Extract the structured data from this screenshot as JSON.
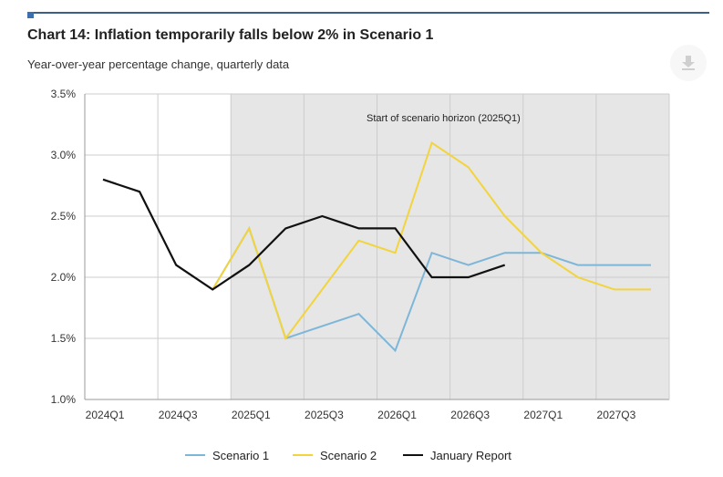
{
  "header": {
    "title": "Chart 14: Inflation temporarily falls below 2% in Scenario 1",
    "subtitle": "Year-over-year percentage change, quarterly data"
  },
  "toolbar": {
    "download_icon": "download-icon"
  },
  "chart_data": {
    "type": "line",
    "title": "Chart 14: Inflation temporarily falls below 2% in Scenario 1",
    "subtitle": "Year-over-year percentage change, quarterly data",
    "xlabel": "",
    "ylabel": "",
    "ylim": [
      1.0,
      3.5
    ],
    "y_ticks": [
      "1.0%",
      "1.5%",
      "2.0%",
      "2.5%",
      "3.0%",
      "3.5%"
    ],
    "y_tick_values": [
      1.0,
      1.5,
      2.0,
      2.5,
      3.0,
      3.5
    ],
    "x": [
      "2024Q1",
      "2024Q2",
      "2024Q3",
      "2024Q4",
      "2025Q1",
      "2025Q2",
      "2025Q3",
      "2025Q4",
      "2026Q1",
      "2026Q2",
      "2026Q3",
      "2026Q4",
      "2027Q1",
      "2027Q2",
      "2027Q3",
      "2027Q4"
    ],
    "x_tick_labels": [
      "2024Q1",
      "2024Q3",
      "2025Q1",
      "2025Q3",
      "2026Q1",
      "2026Q3",
      "2027Q1",
      "2027Q3"
    ],
    "grid": true,
    "shaded_region": {
      "from": "2025Q1",
      "to": "2027Q4",
      "color": "#e6e6e6",
      "label": "Start of scenario horizon (2025Q1)"
    },
    "legend_position": "bottom",
    "series": [
      {
        "name": "Scenario 1",
        "color": "#7db6d8",
        "values": [
          null,
          null,
          null,
          1.9,
          2.4,
          1.5,
          1.6,
          1.7,
          1.4,
          2.2,
          2.1,
          2.2,
          2.2,
          2.1,
          2.1,
          2.1
        ]
      },
      {
        "name": "Scenario 2",
        "color": "#f2d43d",
        "values": [
          null,
          null,
          null,
          1.9,
          2.4,
          1.5,
          1.9,
          2.3,
          2.2,
          3.1,
          2.9,
          2.5,
          2.2,
          2.0,
          1.9,
          1.9
        ]
      },
      {
        "name": "January Report",
        "color": "#111111",
        "values": [
          2.8,
          2.7,
          2.1,
          1.9,
          2.1,
          2.4,
          2.5,
          2.4,
          2.4,
          2.0,
          2.0,
          2.1,
          null,
          null,
          null,
          null
        ]
      }
    ]
  }
}
